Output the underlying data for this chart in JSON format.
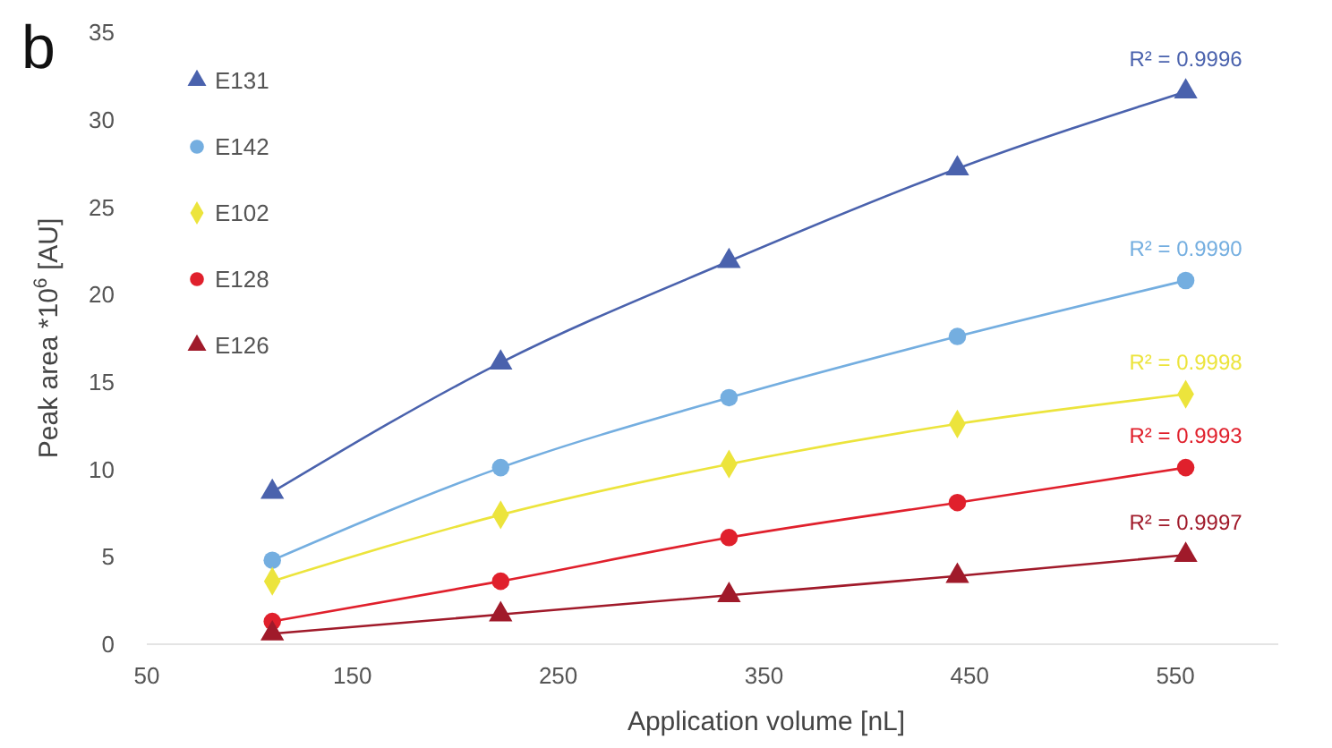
{
  "chart_data": {
    "type": "line",
    "xlabel": "Application volume [nL]",
    "ylabel": "Peak area *10$^{6}$ [AU]",
    "x": [
      111,
      222,
      333,
      444,
      555
    ],
    "xlim": [
      50,
      600
    ],
    "xticks": [
      50,
      150,
      250,
      350,
      450,
      550
    ],
    "ylim": [
      0,
      35
    ],
    "yticks": [
      0,
      5,
      10,
      15,
      20,
      25,
      30,
      35
    ],
    "grid": false,
    "legend": "top left",
    "series": [
      {
        "name": "E131",
        "color": "#4a62ad",
        "marker": "triangle",
        "values": [
          8.7,
          16.1,
          21.9,
          27.2,
          31.6
        ]
      },
      {
        "name": "E142",
        "color": "#74aee0",
        "marker": "circle",
        "values": [
          4.8,
          10.1,
          14.1,
          17.6,
          20.8
        ]
      },
      {
        "name": "E102",
        "color": "#ece43c",
        "marker": "diamond",
        "values": [
          3.6,
          7.4,
          10.3,
          12.6,
          14.3
        ]
      },
      {
        "name": "E128",
        "color": "#e0202c",
        "marker": "circle",
        "values": [
          1.3,
          3.6,
          6.1,
          8.1,
          10.1
        ]
      },
      {
        "name": "E126",
        "color": "#a01a2a",
        "marker": "triangle",
        "values": [
          0.6,
          1.7,
          2.8,
          3.9,
          5.1
        ]
      }
    ],
    "annotations": [
      "b",
      "R² = 0.9996",
      "R² = 0.9990",
      "R² = 0.9998",
      "R² = 0.9993",
      "R² = 0.9997"
    ]
  }
}
